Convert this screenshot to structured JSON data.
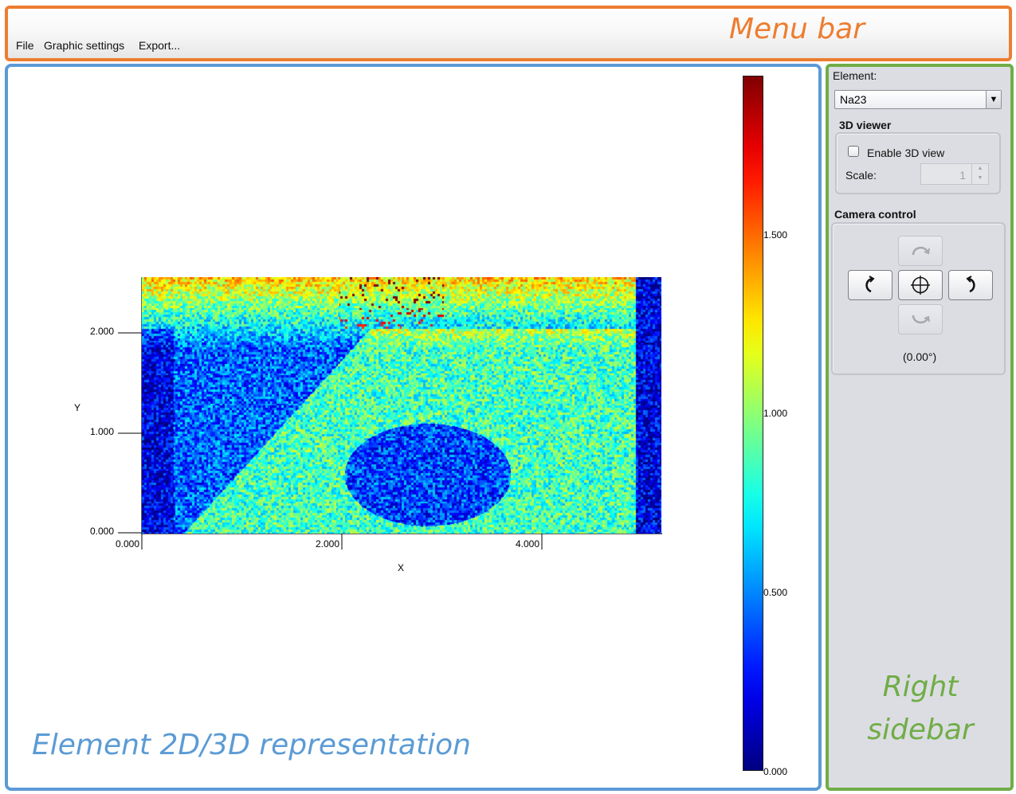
{
  "annotations": {
    "menu_bar": "Menu bar",
    "representation": "Element 2D/3D representation",
    "sidebar_line1": "Right",
    "sidebar_line2": "sidebar"
  },
  "menu": {
    "items": [
      "File",
      "Graphic settings",
      "Export..."
    ]
  },
  "sidebar": {
    "element_label": "Element:",
    "element_value": "Na23",
    "viewer_title": "3D viewer",
    "enable_3d_label": "Enable 3D view",
    "enable_3d_checked": false,
    "scale_label": "Scale:",
    "scale_value": "1",
    "camera_title": "Camera control",
    "angle_readout": "(0.00°)",
    "icons": [
      "rotate-up-icon",
      "rotate-left-icon",
      "center-crosshair-icon",
      "rotate-right-icon",
      "rotate-down-icon"
    ]
  },
  "plot": {
    "xlabel": "X",
    "ylabel": "Y",
    "x_ticks": [
      "0.000",
      "2.000",
      "4.000"
    ],
    "y_ticks": [
      "0.000",
      "1.000",
      "2.000"
    ],
    "colorbar_ticks": [
      "0.000",
      "0.500",
      "1.000",
      "1.500"
    ],
    "colormap": "jet",
    "colorbar_range": [
      0,
      1.95
    ],
    "x_range": [
      0,
      5.2
    ],
    "y_range": [
      0,
      2.55
    ]
  },
  "colors": {
    "menu_accent": "#ed7d31",
    "main_accent": "#5b9bd5",
    "sidebar_accent": "#70ad47",
    "sidebar_bg": "#dcdde2"
  }
}
